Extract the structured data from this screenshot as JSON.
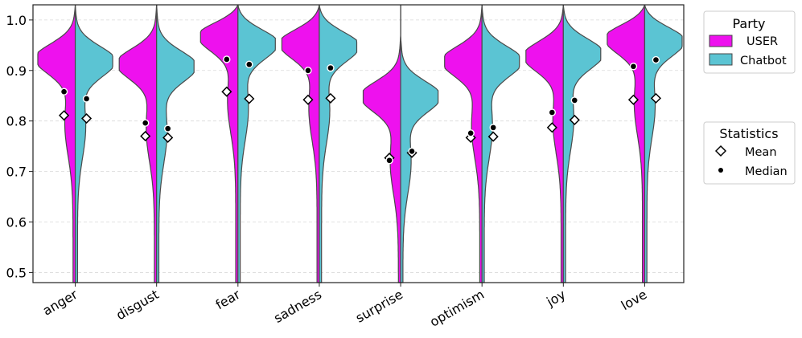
{
  "chart_data": {
    "type": "violin",
    "title": "",
    "xlabel": "",
    "ylabel": "",
    "ylim": [
      0.48,
      1.03
    ],
    "yticks": [
      0.5,
      0.6,
      0.7,
      0.8,
      0.9,
      1.0
    ],
    "ytick_labels": [
      "0.5",
      "0.6",
      "0.7",
      "0.8",
      "0.9",
      "1.0"
    ],
    "grid": "horizontal-dashed",
    "categories": [
      "anger",
      "disgust",
      "fear",
      "sadness",
      "surprise",
      "optimism",
      "joy",
      "love"
    ],
    "series": [
      {
        "name": "USER",
        "color": "#ee11ee",
        "mean": [
          0.811,
          0.77,
          0.858,
          0.842,
          0.727,
          0.767,
          0.787,
          0.842
        ],
        "median": [
          0.858,
          0.796,
          0.922,
          0.9,
          0.722,
          0.776,
          0.817,
          0.908
        ],
        "peak": [
          0.925,
          0.915,
          0.97,
          0.955,
          0.85,
          0.92,
          0.93,
          0.965
        ]
      },
      {
        "name": "Chatbot",
        "color": "#5bc4d3",
        "mean": [
          0.805,
          0.767,
          0.844,
          0.845,
          0.737,
          0.769,
          0.802,
          0.845
        ],
        "median": [
          0.844,
          0.785,
          0.912,
          0.905,
          0.74,
          0.787,
          0.841,
          0.921
        ],
        "peak": [
          0.92,
          0.91,
          0.955,
          0.95,
          0.85,
          0.92,
          0.935,
          0.96
        ]
      }
    ],
    "legends": [
      {
        "title": "Party",
        "position": "upper-right-outside",
        "entries": [
          {
            "label": "USER",
            "symbol": "patch",
            "color": "#ee11ee"
          },
          {
            "label": "Chatbot",
            "symbol": "patch",
            "color": "#5bc4d3"
          }
        ]
      },
      {
        "title": "Statistics",
        "position": "middle-right-outside",
        "entries": [
          {
            "label": "Mean",
            "symbol": "diamond"
          },
          {
            "label": "Median",
            "symbol": "dot"
          }
        ]
      }
    ]
  }
}
